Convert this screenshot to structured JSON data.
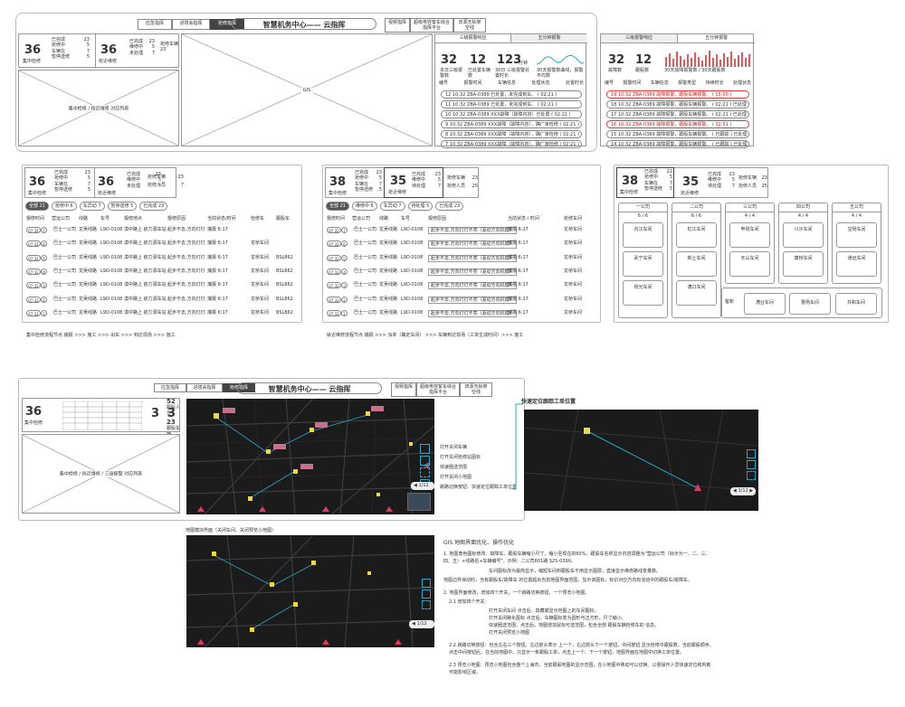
{
  "top_nav": {
    "tabs": [
      "应急指挥",
      "进境会指挥",
      "抢修指挥"
    ],
    "title": "智慧机务中心—— 云指挥",
    "right_tabs": [
      "视频指挥",
      "超级电容客车综合指挥平台",
      "双源无轨架空线"
    ]
  },
  "stats": {
    "left_num": "36",
    "left_label": "集中检修",
    "left_rows": [
      {
        "k": "已完成",
        "v": "23"
      },
      {
        "k": "抢修中",
        "v": "5"
      },
      {
        "k": "车辆在",
        "v": "7"
      },
      {
        "k": "暂停送修",
        "v": "5"
      }
    ],
    "mid_num": "36",
    "mid_label": "抢近维修",
    "mid_rows": [
      {
        "k": "已完成",
        "v": "23"
      },
      {
        "k": "维修中",
        "v": "5"
      },
      {
        "k": "未处理",
        "v": "7"
      }
    ],
    "side_rows": [
      {
        "k": "抢修车辆",
        "v": "23"
      },
      {
        "k": "抢修人员",
        "v": "25"
      }
    ]
  },
  "panels": {
    "list_placeholder": "集中检修 / 抢近维修 对应列表",
    "gis": "GIS",
    "list3": "集中检修 / 抢近维修 / 三级报警 对应列表"
  },
  "alarm_a": {
    "tabs": [
      "三级报警响应",
      "五分钟报警"
    ],
    "nums": [
      {
        "n": "32",
        "l": "本日三级报警数"
      },
      {
        "n": "12",
        "l": "已处置车辆数"
      },
      {
        "n": "123",
        "u": "分钟",
        "l": "30日 三级报警处置时长"
      }
    ],
    "trend": "30天报警数曲线，报警平均数",
    "headers": [
      "编号",
      "报警时间",
      "车辆信息",
      "处理状态",
      "处置时长"
    ],
    "rows": [
      "12  10:32  ZBA-0389  已处置，未完成到车。  ( 02:21 )",
      "11  10:32  ZBA-0389  已处置，未完成到车。  ( 02:21 )",
      "10  10:32  ZBA-0389  XXX故障（故障内容）已处置  ( 02:21 )",
      "9  10:32  ZBA-0389  XXX故障（故障内容），确厂家检修  ( 02:21 )",
      "8  10:32  ZBA-0389  XXX故障（故障内容），确厂家检修  ( 02:21 )",
      "7  10:32  ZBA-0389  XXX故障（故障内容），确厂家检修  ( 02:21 )"
    ]
  },
  "alarm_b": {
    "tabs": [
      "三级报警响应",
      "五分钟报警"
    ],
    "nums": [
      {
        "n": "32",
        "l": "故障数"
      },
      {
        "n": "12",
        "l": "跟股数"
      }
    ],
    "trend": "30天故障报警数 / 30天跟股数",
    "headers": [
      "编号",
      "报警时间",
      "车辆信息",
      "报警类型",
      "持续时长",
      "处理状态"
    ],
    "rows": [
      {
        "t": "19  10:32  ZBA-0389 故障报警，跟股车辆报警。  ( 15:00 )",
        "red": true
      },
      {
        "t": "18  10:32  ZBA-0389 故障报警，跟股车辆报警。  ( 02:21 )  已处理",
        "red": false
      },
      {
        "t": "17  10:32  ZBA-0389 故障报警，跟股车辆报警。  ( 02:21 )  已处理",
        "red": false
      },
      {
        "t": "16  10:32  ZBA-0389 故障报警，跟股车辆报警。  ( 32:51 )",
        "red": true
      },
      {
        "t": "15  10:32  ZBA-0389 故障报警，跟股车辆报警。  ( 已跟踪 )  已处理",
        "red": false
      },
      {
        "t": "14  10:32  ZBA-0389 故障报警，跟股车辆报警。  ( 已跟踪 )  已处理",
        "red": false
      }
    ]
  },
  "mid_left": {
    "num1": "36",
    "label1": "集中检修",
    "rows1": [
      {
        "k": "已完成",
        "v": "23"
      },
      {
        "k": "抢修中",
        "v": "5"
      },
      {
        "k": "车辆在",
        "v": "7"
      },
      {
        "k": "暂停送修",
        "v": "5"
      }
    ],
    "num2": "36",
    "label2": "抢近维修",
    "rows2": [
      {
        "k": "已完成",
        "v": "23"
      },
      {
        "k": "维修中",
        "v": "5"
      },
      {
        "k": "未处理",
        "v": "7"
      }
    ],
    "side": [
      {
        "k": "抢修车辆",
        "v": "23"
      },
      {
        "k": "抢修人员",
        "v": "7"
      }
    ],
    "pills": [
      "全部 21",
      "抢修中 6",
      "车异动 7",
      "暂停送修 5",
      "已完成 23"
    ],
    "headers": [
      "报修时间",
      "营运公司",
      "线路",
      "车号",
      "报修地点",
      "报修原因",
      "当前状态/时间",
      "检修车",
      "跟股车"
    ],
    "rows": [
      {
        "d": "07.32",
        "n": "7",
        "c": "巴士一公司",
        "l": "龙吴线路",
        "car": "L9D-0108",
        "loc": "漠中路上 航力源车站",
        "r": "起步不去,方向灯灯",
        "s": "捕报 6:17",
        "v": "",
        "p": ""
      },
      {
        "d": "07.32",
        "n": "6",
        "c": "巴士一公司",
        "l": "龙吴线路",
        "car": "L9D-0108",
        "loc": "漠中路上 航力源车站",
        "r": "起步不去,方向灯灯",
        "s": "捕报 6:17",
        "v": "龙桥车间",
        "p": ""
      },
      {
        "d": "07.32",
        "n": "5",
        "c": "巴士一公司",
        "l": "龙吴线路",
        "car": "L9D-0108",
        "loc": "漠中路上 航力源车站",
        "r": "起步不去,方向灯灯",
        "s": "捕报 6:17",
        "v": "龙桥车间",
        "p": "BSL862"
      },
      {
        "d": "07.32",
        "n": "4",
        "c": "巴士一公司",
        "l": "龙吴线路",
        "car": "L9D-0108",
        "loc": "漠中路上 航力源车站",
        "r": "起步不去,方向灯灯",
        "s": "捕报 6:17",
        "v": "龙桥车间",
        "p": "BSL862"
      },
      {
        "d": "07.32",
        "n": "3",
        "c": "巴士一公司",
        "l": "龙吴线路",
        "car": "L9D-0108",
        "loc": "漠中路上 航力源车站",
        "r": "起步不去,方向灯灯",
        "s": "捕报 6:17",
        "v": "龙桥车间",
        "p": "BSL862"
      },
      {
        "d": "07.32",
        "n": "2",
        "c": "巴士一公司",
        "l": "龙吴线路",
        "car": "L9D-0108",
        "loc": "漠中路上 航力源车站",
        "r": "起步不去,方向灯灯",
        "s": "捕报 6:17",
        "v": "龙桥车间",
        "p": "BSL862"
      },
      {
        "d": "07.32",
        "n": "1",
        "c": "巴士一公司",
        "l": "龙吴线路",
        "car": "L9D-0108",
        "loc": "漠中路上 航力源车站",
        "r": "起步不去,方向灯灯",
        "s": "捕报 6:17",
        "v": "龙桥车间",
        "p": "BSL862"
      }
    ],
    "footer": "集中检修流程节点    捕报 >>> 施工 >>> 出车 >>> 到达现场 >>> 施工"
  },
  "mid_center": {
    "num1": "38",
    "label1": "集中检修",
    "rows1": [
      {
        "k": "已完成",
        "v": "23"
      },
      {
        "k": "抢修中",
        "v": "5"
      },
      {
        "k": "车辆在",
        "v": "7"
      },
      {
        "k": "暂停送修",
        "v": "5"
      }
    ],
    "num2": "35",
    "label2": "抢近维修",
    "rows2": [
      {
        "k": "已完成",
        "v": "23"
      },
      {
        "k": "维修中",
        "v": "5"
      },
      {
        "k": "待处理",
        "v": "7"
      }
    ],
    "side": [
      {
        "k": "抢修车辆",
        "v": "23"
      },
      {
        "k": "抢修人员",
        "v": "25"
      }
    ],
    "pills": [
      "全部 21",
      "维修中 6",
      "车异动 7",
      "待处理 5",
      "已完成 23"
    ],
    "headers": [
      "报修时间",
      "营运公司",
      "线路",
      "车号",
      "报修原因",
      "当前状态 / 时间",
      "抢修车间"
    ],
    "rows": [
      {
        "d": "07.32",
        "n": "7",
        "c": "巴士一公司",
        "l": "龙吴线路",
        "car": "L9D-0108",
        "r": "起步不去,方向灯灯不亮（驱动方向机模）",
        "s": "捕报 6:17",
        "v": "龙桥车间"
      },
      {
        "d": "07.32",
        "n": "6",
        "c": "巴士一公司",
        "l": "龙吴线路",
        "car": "L9D-0108",
        "r": "起步不去,方向灯灯不亮（驱动方向机模）",
        "s": "捕报 6:17",
        "v": "龙桥车间"
      },
      {
        "d": "07.32",
        "n": "5",
        "c": "巴士一公司",
        "l": "龙吴线路",
        "car": "L9D-0108",
        "r": "起步不去,方向灯灯不亮（驱动方向机模）",
        "s": "捕报 6:17",
        "v": "龙桥车间"
      },
      {
        "d": "07.32",
        "n": "4",
        "c": "巴士一公司",
        "l": "龙吴线路",
        "car": "L9D-0108",
        "r": "起步不去,方向灯灯不亮（驱动方向机模）",
        "s": "捕报 6:17",
        "v": "龙桥车间"
      },
      {
        "d": "07.32",
        "n": "3",
        "c": "巴士一公司",
        "l": "龙吴线路",
        "car": "L9D-0108",
        "r": "起步不去,方向灯灯不亮（驱动方向机模）",
        "s": "捕报 6:17",
        "v": "龙桥车间"
      },
      {
        "d": "07.32",
        "n": "2",
        "c": "巴士一公司",
        "l": "龙吴线路",
        "car": "L9D-0108",
        "r": "起步不去,方向灯灯不亮（驱动方向机模）",
        "s": "捕报 6:17",
        "v": "龙桥车间"
      },
      {
        "d": "07.32",
        "n": "1",
        "c": "巴士一公司",
        "l": "龙吴线路",
        "car": "L9D-0108",
        "r": "起步不去,方向灯灯不亮（驱动方向机模）",
        "s": "捕报 6:17",
        "v": "龙桥车间"
      }
    ],
    "footer": "就近维修流程节点    捕报 >>> 派单（确定车间） >>> 车辆到达现场（工单生成时间）>>> 施工"
  },
  "mid_right": {
    "num1": "38",
    "label1": "集中检修",
    "rows1": [
      {
        "k": "已完成",
        "v": "21"
      },
      {
        "k": "抢修中",
        "v": "5"
      },
      {
        "k": "车辆在",
        "v": "7"
      },
      {
        "k": "暂停送修",
        "v": "5"
      }
    ],
    "num2": "35",
    "label2": "抢近维修",
    "rows2": [
      {
        "k": "已完成",
        "v": "23"
      },
      {
        "k": "维修中",
        "v": "5"
      },
      {
        "k": "待处理",
        "v": "7"
      }
    ],
    "side": [
      {
        "k": "抢修车辆",
        "v": "23"
      },
      {
        "k": "抢修人员",
        "v": "25"
      }
    ],
    "companies": [
      {
        "name": "一公司",
        "stat": "6 / 6",
        "depots": [
          "内江车间",
          "武宁车间",
          "杨光车间"
        ]
      },
      {
        "name": "二公司",
        "stat": "6 / 6",
        "depots": [
          "虹江车间",
          "新土车间",
          "漕口车间"
        ]
      },
      {
        "name": "三公司",
        "stat": "4 / 4",
        "depots": [
          "申昆车间",
          "天山车间"
        ]
      },
      {
        "name": "四公司",
        "stat": "4 / 4",
        "depots": [
          "川沙车间",
          "康桥车间"
        ]
      },
      {
        "name": "五公司",
        "stat": "4 / 4",
        "depots": [
          "宝杨车间",
          "通远车间"
        ]
      }
    ],
    "bottom": [
      "漕业车间",
      "曹杨车间",
      "共和车间"
    ],
    "bottom_label": "客新"
  },
  "bottom_map": {
    "nav_tabs": [
      "应急指挥",
      "进境会指挥",
      "抢修指挥"
    ],
    "title": "智慧机务中心—— 云指挥",
    "right_tabs": [
      "视频指挥",
      "超级电容客车综合指挥平台",
      "双源无轨架空线"
    ],
    "left_num": "36",
    "left_label": "集中检修",
    "small_num1": "3",
    "small_num2": "3",
    "side1": "52",
    "side1_label": "跟股人员",
    "side2": "23",
    "side2_label": "跟股车辆",
    "legend": [
      "打开关闭车辆",
      "打开关闭抢修站图标",
      "快速圈选范围",
      "打开关闭小地图",
      "跳路切换按钮、快速定位跟踪工单位置"
    ],
    "callout": "快速定位跟踪工单位置",
    "zoom": "1/12"
  },
  "bottom_second": {
    "caption": "地图模块界面（关闭车间、关闭预览小地图）",
    "notes_title": "GIS 地图界面优化、操作优化",
    "notes": [
      "1. 地图角色图标修改：故障车、跟股车辆缩小尺寸，缩小至现在的60%。跟股车名称显示内容调整为\"营运公司（标示为一、二、三、四、五）+线路名+车辆编号\"，示例：二公司801路 S2S-0390。",
      "车间图标改为最简显示，缩短车间到跟股车不用显示图层，直接显示维修路线变量数。",
      "地图边界滑动时，当有跟股车/故障车 的位置超出当前地图界面范围，显示该图标，标识对应方向有活动中的跟股车/故障车。",
      "2. 地图界面修改，增加四个开关，一个跳路切换按钮，一个预览小地图。",
      "2.1 增加四个开关：",
      "打开关闭车间 点击后，隐藏或显示地图上的车间图标。",
      "打开关闭路化图标 点击后，车辆图标变为圆形与正方形，尺寸缩小。",
      "快速圈选范围，点击后，地图增加鼠标可选范围，包含全部 跟股车辆抢修车的 信息。",
      "打开关闭预览小地图",
      "2.2 跳路切换按钮：包含左右三个按钮，左边箭头表示 上一个，右边箭头下一个按钮，中间按钮 显示抢修中跟股数、当前跟股顺序。点击中间按钮后，在当前地图中，只显示一条跟股工单，点击上一个、下一个按钮，地图界面在地图中切换工单位置。",
      "2.3 预览小地图：预览小地图包含整个上海市，当前跟股地图的显示范围，在小地图中移动可以切换。以便操作人员快速定位和判断可能影响区域。"
    ],
    "zoom": "1/12"
  }
}
